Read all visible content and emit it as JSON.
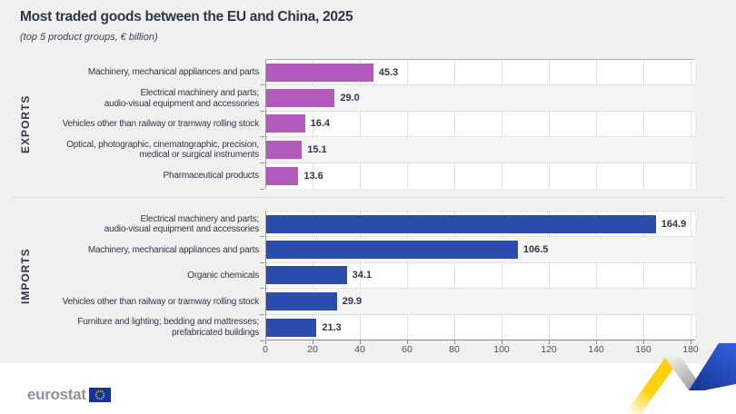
{
  "title": "Most traded goods between the EU and China, 2025",
  "subtitle": "(top 5 product groups, € billion)",
  "logo": {
    "text": "eurostat"
  },
  "colors": {
    "background": "#f0f0f0",
    "exports_bar": "#b259bd",
    "imports_bar": "#2b4cad",
    "text_dark": "#2f3746",
    "axis_text": "#4f4f4f",
    "eu_flag_blue": "#1233a0",
    "eu_flag_stars": "#ffcc00",
    "ribbon_yellow": "#fcd20f",
    "ribbon_blue": "#2e5ed8"
  },
  "chart_data": {
    "type": "bar",
    "orientation": "horizontal",
    "title": "Most traded goods between the EU and China, 2025",
    "subtitle": "(top 5 product groups, € billion)",
    "unit": "€ billion",
    "xlabel": "",
    "ylabel": "",
    "xlim": [
      0,
      180
    ],
    "x_ticks": [
      "0",
      "20",
      "40",
      "60",
      "80",
      "100",
      "120",
      "140",
      "160",
      "180"
    ],
    "grid": true,
    "legend": "none",
    "groups": [
      {
        "name": "EXPORTS",
        "color": "#b259bd",
        "items": [
          {
            "label_lines": [
              "Machinery, mechanical appliances and parts"
            ],
            "value": 45.3,
            "display": "45.3"
          },
          {
            "label_lines": [
              "Electrical machinery and parts;",
              "audio-visual equipment and accessories"
            ],
            "value": 29.0,
            "display": "29.0"
          },
          {
            "label_lines": [
              "Vehicles other than railway or tramway rolling stock"
            ],
            "value": 16.4,
            "display": "16.4"
          },
          {
            "label_lines": [
              "Optical, photographic, cinematographic, precision,",
              "medical or surgical instruments"
            ],
            "value": 15.1,
            "display": "15.1"
          },
          {
            "label_lines": [
              "Pharmaceutical products"
            ],
            "value": 13.6,
            "display": "13.6"
          }
        ]
      },
      {
        "name": "IMPORTS",
        "color": "#2b4cad",
        "items": [
          {
            "label_lines": [
              "Electrical machinery and parts;",
              "audio-visual equipment and accessories"
            ],
            "value": 164.9,
            "display": "164.9"
          },
          {
            "label_lines": [
              "Machinery, mechanical appliances and parts"
            ],
            "value": 106.5,
            "display": "106.5"
          },
          {
            "label_lines": [
              "Organic chemicals"
            ],
            "value": 34.1,
            "display": "34.1"
          },
          {
            "label_lines": [
              "Vehicles other than railway or tramway rolling stock"
            ],
            "value": 29.9,
            "display": "29.9"
          },
          {
            "label_lines": [
              "Furniture and lighting; bedding and mattresses;",
              "prefabricated buildings"
            ],
            "value": 21.3,
            "display": "21.3"
          }
        ]
      }
    ]
  }
}
